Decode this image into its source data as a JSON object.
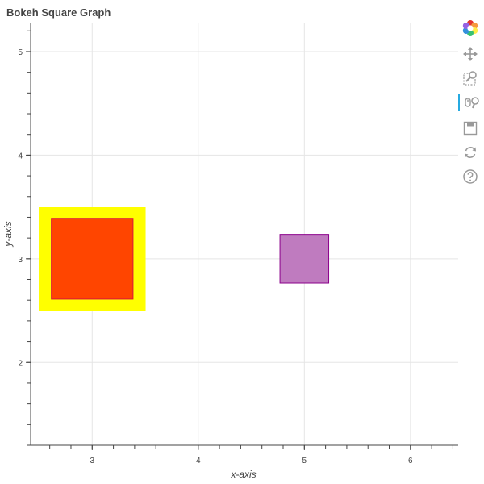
{
  "chart_data": {
    "type": "scatter",
    "title": "Bokeh Square Graph",
    "xlabel": "x-axis",
    "ylabel": "y-axis",
    "xlim": [
      2.42,
      6.45
    ],
    "ylim": [
      1.2,
      5.28
    ],
    "x_ticks": [
      3,
      4,
      5,
      6
    ],
    "y_ticks": [
      2,
      3,
      4,
      5
    ],
    "grid": true,
    "series": [
      {
        "marker": "square",
        "points": [
          {
            "x": 3,
            "y": 3,
            "width": 1.0,
            "height": 1.0,
            "fill_color": "#ffff00",
            "line_color": "#ffff00"
          },
          {
            "x": 3,
            "y": 3,
            "width": 0.77,
            "height": 0.78,
            "fill_color": "#ff4500",
            "line_color": "#dc143c"
          },
          {
            "x": 5,
            "y": 3,
            "width": 0.46,
            "height": 0.47,
            "fill_color": "#bf7bbf",
            "line_color": "#8b008b"
          }
        ]
      }
    ]
  },
  "toolbar": {
    "tools": [
      {
        "name": "bokeh-logo",
        "icon": "bokeh-logo-icon",
        "active": false
      },
      {
        "name": "pan",
        "icon": "pan-icon",
        "active": false
      },
      {
        "name": "box-zoom",
        "icon": "box-zoom-icon",
        "active": false
      },
      {
        "name": "wheel-zoom",
        "icon": "wheel-zoom-icon",
        "active": true
      },
      {
        "name": "save",
        "icon": "save-icon",
        "active": false
      },
      {
        "name": "reset",
        "icon": "reset-icon",
        "active": false
      },
      {
        "name": "help",
        "icon": "help-icon",
        "active": false
      }
    ]
  },
  "colors": {
    "grid": "#e5e5e5",
    "axis": "#444444",
    "active_tool_marker": "#26aae1"
  }
}
